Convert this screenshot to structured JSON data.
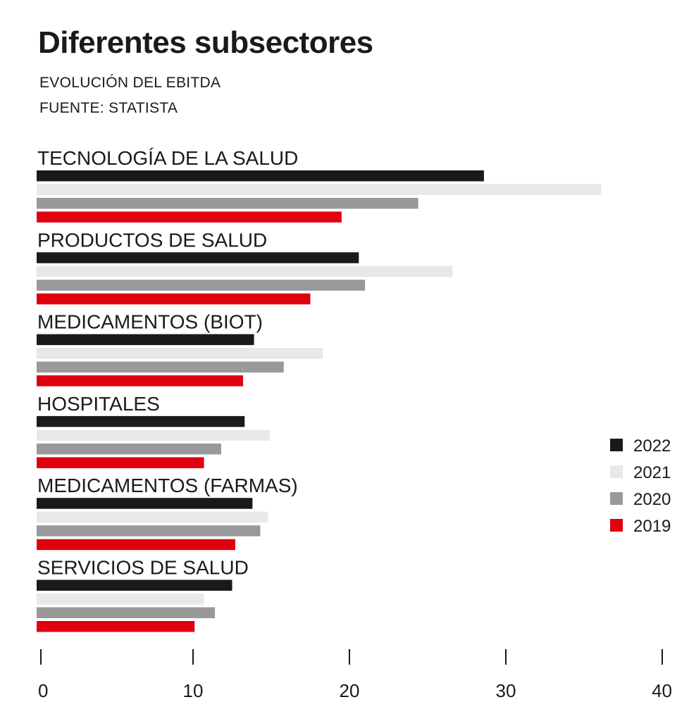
{
  "header": {
    "title": "Diferentes subsectores",
    "subtitle": "EVOLUCIÓN DEL EBITDA",
    "source": "FUENTE: STATISTA"
  },
  "chart_data": {
    "type": "bar",
    "orientation": "horizontal",
    "categories": [
      "TECNOLOGÍA DE LA SALUD",
      "PRODUCTOS DE SALUD",
      "MEDICAMENTOS (BIOT)",
      "HOSPITALES",
      "MEDICAMENTOS (FARMAS)",
      "SERVICIOS DE SALUD"
    ],
    "series": [
      {
        "name": "2022",
        "color": "#1a1a1a",
        "values": [
          28.6,
          20.6,
          13.9,
          13.3,
          13.8,
          12.5
        ]
      },
      {
        "name": "2021",
        "color": "#e8e8e8",
        "values": [
          36.1,
          26.6,
          18.3,
          14.9,
          14.8,
          10.7
        ]
      },
      {
        "name": "2020",
        "color": "#999999",
        "values": [
          24.4,
          21.0,
          15.8,
          11.8,
          14.3,
          11.4
        ]
      },
      {
        "name": "2019",
        "color": "#e0000f",
        "values": [
          19.5,
          17.5,
          13.2,
          10.7,
          12.7,
          10.1
        ]
      }
    ],
    "xlim": [
      0,
      40
    ],
    "xticks": [
      "0",
      "10",
      "20",
      "30",
      "40"
    ],
    "legend_position": "right",
    "grid": false
  }
}
